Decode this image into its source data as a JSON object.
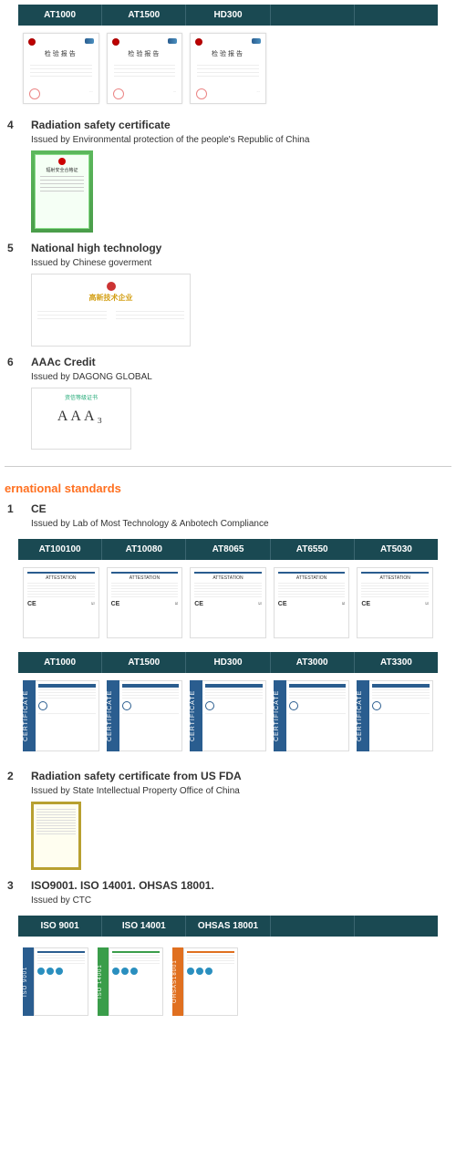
{
  "top_tabs": [
    "AT1000",
    "AT1500",
    "HD300",
    "",
    ""
  ],
  "cn_cert_title": "检验报告",
  "sections": {
    "s4": {
      "num": "4",
      "title": "Radiation safety certificate",
      "sub": "Issued by Environmental protection of the people's Republic of China",
      "green_label": "辐射安全合格证"
    },
    "s5": {
      "num": "5",
      "title": "National high technology",
      "sub": "Issued by Chinese goverment",
      "wide_label": "高新技术企业"
    },
    "s6": {
      "num": "6",
      "title": "AAAc Credit",
      "sub": "Issued by DAGONG GLOBAL",
      "aaa_label": "资信等级证书",
      "aaa_text": "AAA₃"
    }
  },
  "intl": {
    "heading": "ernational standards",
    "s1": {
      "num": "1",
      "title": "CE",
      "sub": "Issued by Lab of Most Technology & Anbotech Compliance",
      "row1_tabs": [
        "AT100100",
        "AT10080",
        "AT8065",
        "AT6550",
        "AT5030"
      ],
      "row2_tabs": [
        "AT1000",
        "AT1500",
        "HD300",
        "AT3000",
        "AT3300"
      ],
      "cert_side": "CERTIFICATE"
    },
    "s2": {
      "num": "2",
      "title": "Radiation safety certificate from US FDA",
      "sub": "Issued by State Intellectual Property Office of China"
    },
    "s3": {
      "num": "3",
      "title": "ISO9001. ISO 14001. OHSAS 18001.",
      "sub": "Issued by CTC",
      "tabs": [
        "ISO 9001",
        "ISO 14001",
        "OHSAS 18001",
        "",
        ""
      ],
      "iso_labels": [
        "ISO 9001",
        "ISO 14001",
        "OHSAS18001"
      ],
      "iso_colors": [
        "#2a5d8f",
        "#3a9d4a",
        "#e07020"
      ]
    }
  }
}
